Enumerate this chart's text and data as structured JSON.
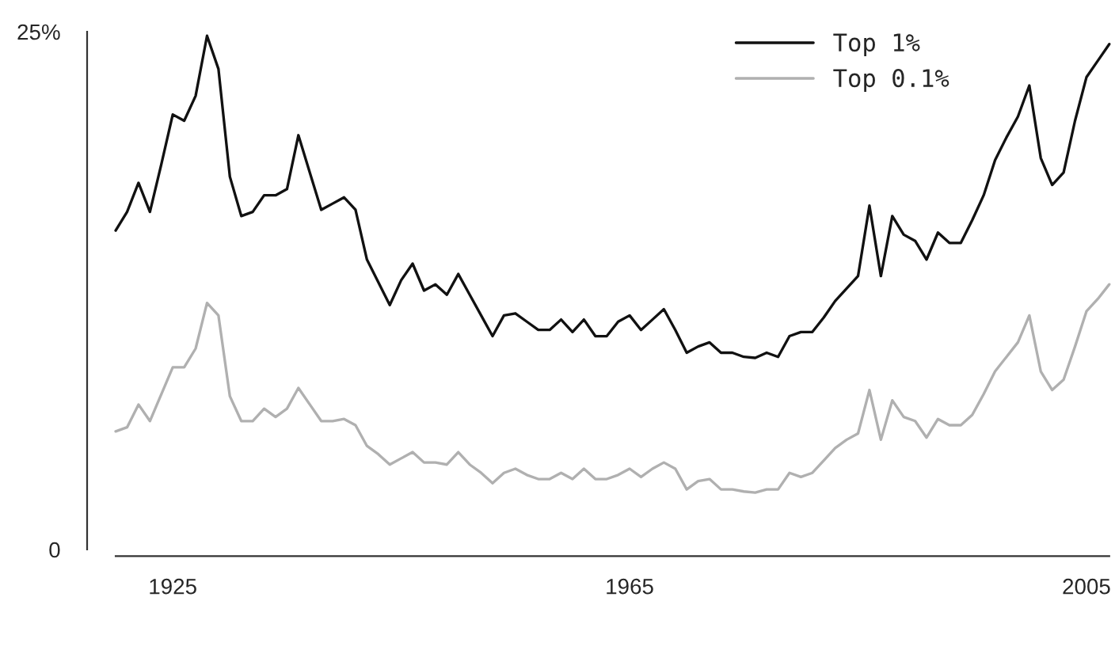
{
  "chart_data": {
    "type": "line",
    "x": [
      1920,
      1921,
      1922,
      1923,
      1924,
      1925,
      1926,
      1927,
      1928,
      1929,
      1930,
      1931,
      1932,
      1933,
      1934,
      1935,
      1936,
      1937,
      1938,
      1939,
      1940,
      1941,
      1942,
      1943,
      1944,
      1945,
      1946,
      1947,
      1948,
      1949,
      1950,
      1951,
      1952,
      1953,
      1954,
      1955,
      1956,
      1957,
      1958,
      1959,
      1960,
      1961,
      1962,
      1963,
      1964,
      1965,
      1966,
      1967,
      1968,
      1969,
      1970,
      1971,
      1972,
      1973,
      1974,
      1975,
      1976,
      1977,
      1978,
      1979,
      1980,
      1981,
      1982,
      1983,
      1984,
      1985,
      1986,
      1987,
      1988,
      1989,
      1990,
      1991,
      1992,
      1993,
      1994,
      1995,
      1996,
      1997,
      1998,
      1999,
      2000,
      2001,
      2002,
      2003,
      2004,
      2005,
      2006,
      2007
    ],
    "series": [
      {
        "name": "Top 1%",
        "color": "#111111",
        "values": [
          15.4,
          16.3,
          17.7,
          16.3,
          18.6,
          21.0,
          20.7,
          21.9,
          24.8,
          23.2,
          18.0,
          16.1,
          16.3,
          17.1,
          17.1,
          17.4,
          20.0,
          18.2,
          16.4,
          16.7,
          17.0,
          16.4,
          14.0,
          12.9,
          11.8,
          13.0,
          13.8,
          12.5,
          12.8,
          12.3,
          13.3,
          12.3,
          11.3,
          10.3,
          11.3,
          11.4,
          11.0,
          10.6,
          10.6,
          11.1,
          10.5,
          11.1,
          10.3,
          10.3,
          11.0,
          11.3,
          10.6,
          11.1,
          11.6,
          10.6,
          9.5,
          9.8,
          10.0,
          9.5,
          9.5,
          9.3,
          9.25,
          9.5,
          9.3,
          10.3,
          10.5,
          10.5,
          11.2,
          12.0,
          12.6,
          13.2,
          16.6,
          13.2,
          16.1,
          15.2,
          14.9,
          14.0,
          15.3,
          14.8,
          14.8,
          15.9,
          17.1,
          18.8,
          19.9,
          20.9,
          22.4,
          18.9,
          17.6,
          18.2,
          20.7,
          22.8,
          23.6,
          24.4
        ]
      },
      {
        "name": "Top 0.1%",
        "color": "#b0b0b0",
        "values": [
          5.7,
          5.9,
          7.0,
          6.2,
          7.5,
          8.8,
          8.8,
          9.7,
          11.9,
          11.3,
          7.4,
          6.2,
          6.2,
          6.8,
          6.4,
          6.8,
          7.8,
          7.0,
          6.2,
          6.2,
          6.3,
          6.0,
          5.0,
          4.6,
          4.1,
          4.4,
          4.7,
          4.2,
          4.2,
          4.1,
          4.7,
          4.1,
          3.7,
          3.2,
          3.7,
          3.9,
          3.6,
          3.4,
          3.4,
          3.7,
          3.4,
          3.9,
          3.4,
          3.4,
          3.6,
          3.9,
          3.5,
          3.9,
          4.2,
          3.9,
          2.9,
          3.3,
          3.4,
          2.9,
          2.9,
          2.8,
          2.75,
          2.9,
          2.9,
          3.7,
          3.5,
          3.7,
          4.3,
          4.9,
          5.3,
          5.6,
          7.7,
          5.3,
          7.2,
          6.4,
          6.2,
          5.4,
          6.3,
          6.0,
          6.0,
          6.5,
          7.5,
          8.6,
          9.3,
          10.0,
          11.3,
          8.6,
          7.7,
          8.2,
          9.8,
          11.5,
          12.1,
          12.8
        ]
      }
    ],
    "xlim": [
      1917.5,
      2007.5
    ],
    "xticks": [
      1925,
      1965,
      2005
    ],
    "ylim": [
      0,
      25
    ],
    "yticks": [
      0,
      {
        "value": 25,
        "label": "25%"
      }
    ],
    "legend": "top right",
    "grid": false,
    "marker": "none",
    "line_style": "solid"
  }
}
